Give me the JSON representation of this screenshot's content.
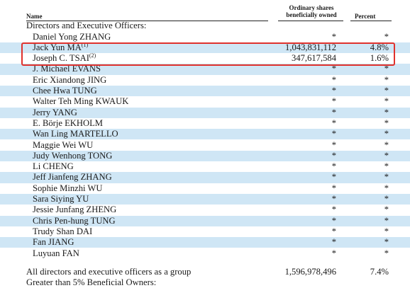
{
  "header": {
    "name": "Name",
    "shares_line1": "Ordinary shares",
    "shares_line2": "beneficially owned",
    "percent": "Percent"
  },
  "section_title": "Directors and Executive Officers:",
  "rows": [
    {
      "name": "Daniel Yong ZHANG",
      "sup": "",
      "shares": "*",
      "percent": "*",
      "shaded": false
    },
    {
      "name": "Jack Yun MA",
      "sup": "(1)",
      "shares": "1,043,831,112",
      "percent": "4.8%",
      "shaded": true
    },
    {
      "name": "Joseph C. TSAI",
      "sup": "(2)",
      "shares": "347,617,584",
      "percent": "1.6%",
      "shaded": false
    },
    {
      "name": "J. Michael EVANS",
      "sup": "",
      "shares": "*",
      "percent": "*",
      "shaded": true
    },
    {
      "name": "Eric Xiandong JING",
      "sup": "",
      "shares": "*",
      "percent": "*",
      "shaded": false
    },
    {
      "name": "Chee Hwa TUNG",
      "sup": "",
      "shares": "*",
      "percent": "*",
      "shaded": true
    },
    {
      "name": "Walter Teh Ming KWAUK",
      "sup": "",
      "shares": "*",
      "percent": "*",
      "shaded": false
    },
    {
      "name": "Jerry YANG",
      "sup": "",
      "shares": "*",
      "percent": "*",
      "shaded": true
    },
    {
      "name": "E. Börje EKHOLM",
      "sup": "",
      "shares": "*",
      "percent": "*",
      "shaded": false
    },
    {
      "name": "Wan Ling MARTELLO",
      "sup": "",
      "shares": "*",
      "percent": "*",
      "shaded": true
    },
    {
      "name": "Maggie Wei WU",
      "sup": "",
      "shares": "*",
      "percent": "*",
      "shaded": false
    },
    {
      "name": "Judy Wenhong TONG",
      "sup": "",
      "shares": "*",
      "percent": "*",
      "shaded": true
    },
    {
      "name": "Li CHENG",
      "sup": "",
      "shares": "*",
      "percent": "*",
      "shaded": false
    },
    {
      "name": "Jeff Jianfeng ZHANG",
      "sup": "",
      "shares": "*",
      "percent": "*",
      "shaded": true
    },
    {
      "name": "Sophie Minzhi WU",
      "sup": "",
      "shares": "*",
      "percent": "*",
      "shaded": false
    },
    {
      "name": "Sara Siying YU",
      "sup": "",
      "shares": "*",
      "percent": "*",
      "shaded": true
    },
    {
      "name": "Jessie Junfang ZHENG",
      "sup": "",
      "shares": "*",
      "percent": "*",
      "shaded": false
    },
    {
      "name": "Chris Pen-hung TUNG",
      "sup": "",
      "shares": "*",
      "percent": "*",
      "shaded": true
    },
    {
      "name": "Trudy Shan DAI",
      "sup": "",
      "shares": "*",
      "percent": "*",
      "shaded": false
    },
    {
      "name": "Fan JIANG",
      "sup": "",
      "shares": "*",
      "percent": "*",
      "shaded": true
    },
    {
      "name": "Luyuan FAN",
      "sup": "",
      "shares": "*",
      "percent": "*",
      "shaded": false
    }
  ],
  "total": {
    "name": "All directors and executive officers as a group",
    "shares": "1,596,978,496",
    "percent": "7.4%"
  },
  "next_section": "Greater than 5% Beneficial Owners:",
  "colors": {
    "row_shade": "#cfe6f5",
    "highlight_border": "#e0322d"
  }
}
